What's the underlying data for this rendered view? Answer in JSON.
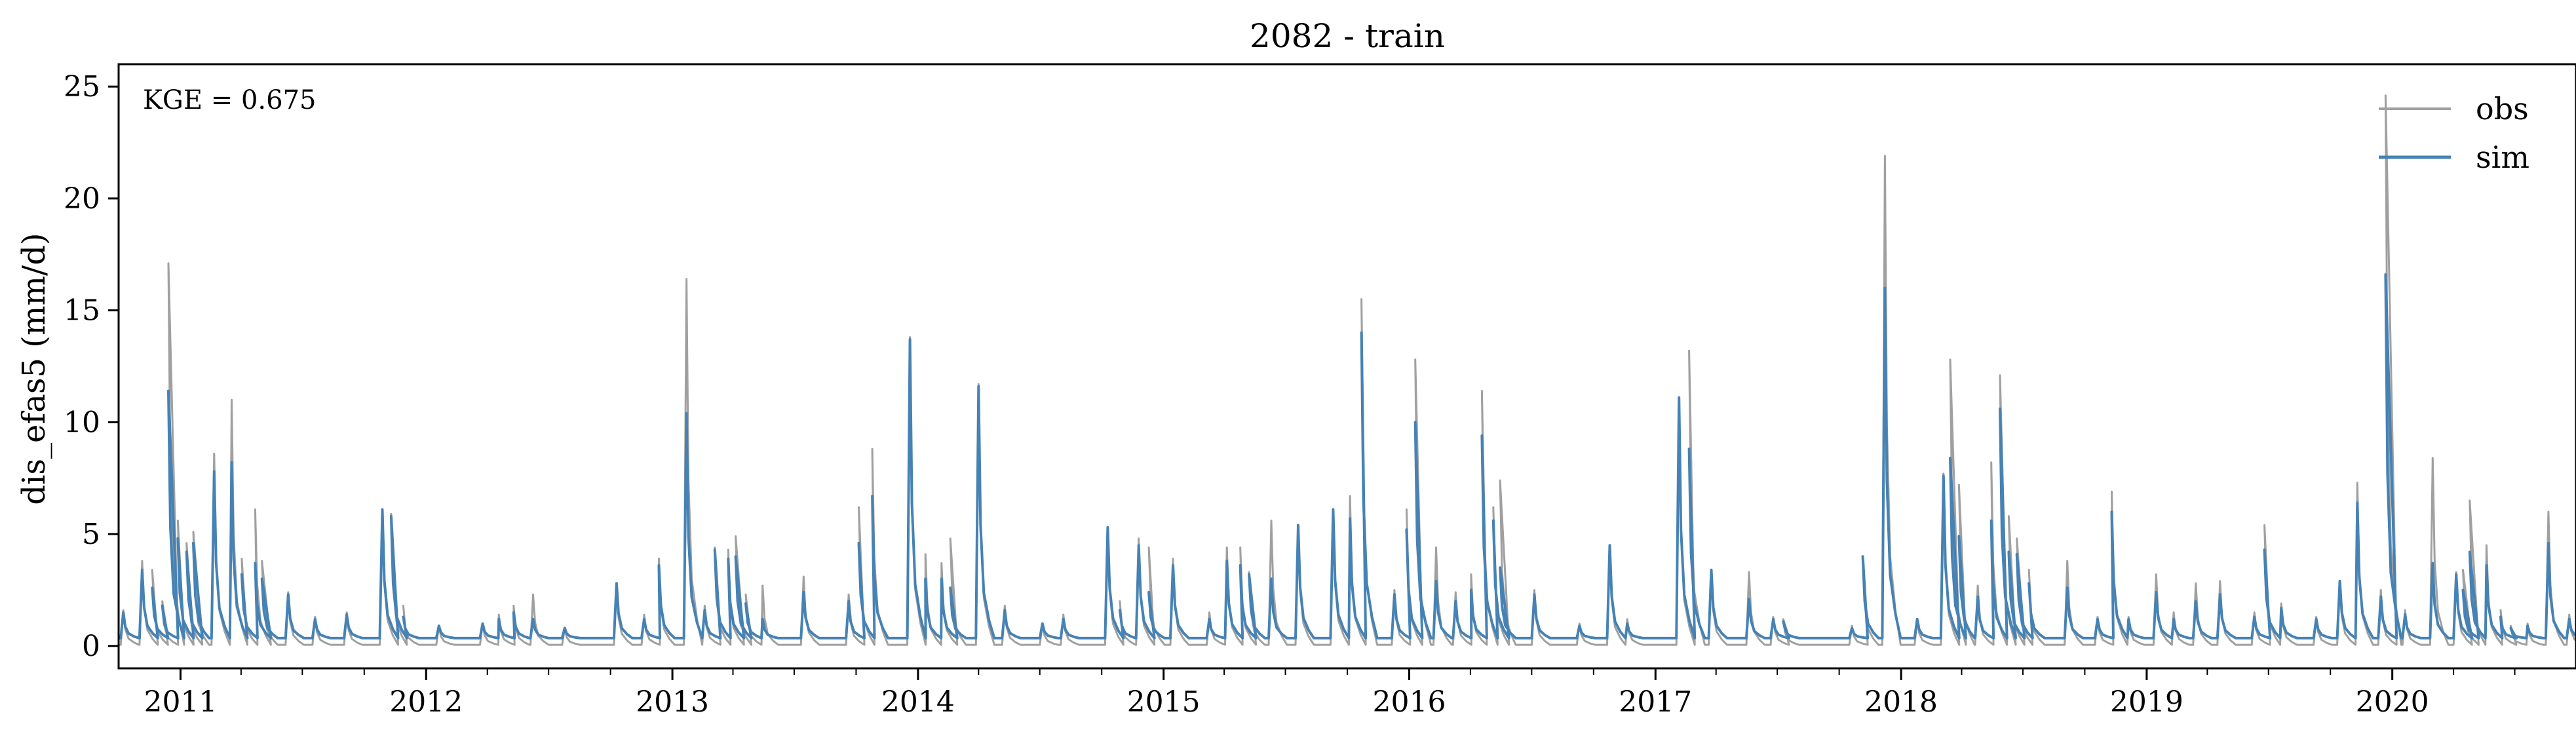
{
  "chart_data": {
    "type": "line",
    "title": "2082 - train",
    "xlabel": "",
    "ylabel": "dis_efas5 (mm/d)",
    "x_range": [
      "2010-10-01",
      "2020-09-30"
    ],
    "ylim": [
      -1.0,
      26.0
    ],
    "yticks": [
      0,
      5,
      10,
      15,
      20,
      25
    ],
    "ytick_labels": [
      "0",
      "5",
      "10",
      "15",
      "20",
      "25"
    ],
    "xticks": [
      "2011-01-01",
      "2012-01-01",
      "2013-01-01",
      "2014-01-01",
      "2015-01-01",
      "2016-01-01",
      "2017-01-01",
      "2018-01-01",
      "2019-01-01",
      "2020-01-01"
    ],
    "xtick_labels": [
      "2011",
      "2012",
      "2013",
      "2014",
      "2015",
      "2016",
      "2017",
      "2018",
      "2019",
      "2020"
    ],
    "grid": false,
    "legend": {
      "placement": "top-right",
      "entries": [
        "obs",
        "sim"
      ]
    },
    "annotation": "KGE = 0.675",
    "colors": {
      "obs": "#a0a0a0",
      "sim": "#4682b4"
    },
    "baseline": {
      "obs": 0.05,
      "sim": 0.35
    },
    "series": [
      {
        "name": "obs",
        "peaks": [
          [
            "2010-10-08",
            1.6
          ],
          [
            "2010-11-05",
            3.8
          ],
          [
            "2010-11-20",
            3.4
          ],
          [
            "2010-12-05",
            2.0
          ],
          [
            "2010-12-14",
            17.1
          ],
          [
            "2010-12-28",
            5.6
          ],
          [
            "2011-01-10",
            4.6
          ],
          [
            "2011-01-20",
            5.1
          ],
          [
            "2011-02-20",
            8.6
          ],
          [
            "2011-03-18",
            11.0
          ],
          [
            "2011-04-02",
            3.9
          ],
          [
            "2011-04-22",
            6.1
          ],
          [
            "2011-05-02",
            3.8
          ],
          [
            "2011-06-10",
            2.4
          ],
          [
            "2011-07-20",
            1.3
          ],
          [
            "2011-09-05",
            1.5
          ],
          [
            "2011-10-28",
            6.1
          ],
          [
            "2011-11-10",
            5.9
          ],
          [
            "2011-11-28",
            1.8
          ],
          [
            "2012-01-20",
            0.9
          ],
          [
            "2012-03-25",
            1.0
          ],
          [
            "2012-04-18",
            1.4
          ],
          [
            "2012-05-10",
            1.8
          ],
          [
            "2012-06-08",
            2.3
          ],
          [
            "2012-07-25",
            0.8
          ],
          [
            "2012-10-10",
            2.8
          ],
          [
            "2012-11-20",
            1.4
          ],
          [
            "2012-12-12",
            3.9
          ],
          [
            "2013-01-22",
            16.4
          ],
          [
            "2013-02-18",
            1.8
          ],
          [
            "2013-03-05",
            4.4
          ],
          [
            "2013-03-25",
            4.3
          ],
          [
            "2013-04-05",
            4.9
          ],
          [
            "2013-04-20",
            2.3
          ],
          [
            "2013-05-15",
            2.7
          ],
          [
            "2013-07-15",
            3.1
          ],
          [
            "2013-09-20",
            2.3
          ],
          [
            "2013-10-05",
            6.2
          ],
          [
            "2013-10-25",
            8.8
          ],
          [
            "2013-12-20",
            13.8
          ],
          [
            "2014-01-12",
            4.1
          ],
          [
            "2014-02-05",
            3.7
          ],
          [
            "2014-02-18",
            4.8
          ],
          [
            "2014-04-01",
            11.7
          ],
          [
            "2014-05-10",
            1.8
          ],
          [
            "2014-07-05",
            1.0
          ],
          [
            "2014-08-05",
            1.4
          ],
          [
            "2014-10-10",
            5.3
          ],
          [
            "2014-10-28",
            2.0
          ],
          [
            "2014-11-25",
            4.8
          ],
          [
            "2014-12-10",
            4.4
          ],
          [
            "2015-01-15",
            3.9
          ],
          [
            "2015-03-10",
            1.5
          ],
          [
            "2015-04-05",
            4.4
          ],
          [
            "2015-04-25",
            4.4
          ],
          [
            "2015-05-08",
            3.3
          ],
          [
            "2015-06-10",
            5.6
          ],
          [
            "2015-07-20",
            5.4
          ],
          [
            "2015-09-10",
            6.1
          ],
          [
            "2015-10-05",
            6.7
          ],
          [
            "2015-10-22",
            15.5
          ],
          [
            "2015-12-10",
            2.5
          ],
          [
            "2015-12-28",
            6.1
          ],
          [
            "2016-01-10",
            12.8
          ],
          [
            "2016-02-10",
            4.4
          ],
          [
            "2016-03-10",
            2.4
          ],
          [
            "2016-04-02",
            3.2
          ],
          [
            "2016-04-18",
            11.4
          ],
          [
            "2016-05-05",
            6.2
          ],
          [
            "2016-05-15",
            7.4
          ],
          [
            "2016-07-05",
            2.5
          ],
          [
            "2016-09-10",
            1.0
          ],
          [
            "2016-10-25",
            4.5
          ],
          [
            "2016-11-20",
            1.2
          ],
          [
            "2017-02-05",
            11.1
          ],
          [
            "2017-02-20",
            13.2
          ],
          [
            "2017-03-25",
            3.4
          ],
          [
            "2017-05-20",
            3.3
          ],
          [
            "2017-06-25",
            1.3
          ],
          [
            "2017-07-10",
            1.2
          ],
          [
            "2017-10-20",
            0.9
          ],
          [
            "2017-11-05",
            4.0
          ],
          [
            "2017-12-08",
            21.9
          ],
          [
            "2018-01-25",
            1.2
          ],
          [
            "2018-03-05",
            7.7
          ],
          [
            "2018-03-15",
            12.8
          ],
          [
            "2018-03-28",
            7.2
          ],
          [
            "2018-04-25",
            2.7
          ],
          [
            "2018-05-15",
            8.2
          ],
          [
            "2018-05-28",
            12.1
          ],
          [
            "2018-06-10",
            5.8
          ],
          [
            "2018-06-22",
            4.8
          ],
          [
            "2018-07-10",
            3.4
          ],
          [
            "2018-09-05",
            3.8
          ],
          [
            "2018-10-20",
            1.3
          ],
          [
            "2018-11-10",
            6.9
          ],
          [
            "2018-12-05",
            1.3
          ],
          [
            "2019-01-15",
            3.2
          ],
          [
            "2019-02-10",
            1.5
          ],
          [
            "2019-03-15",
            2.8
          ],
          [
            "2019-04-20",
            2.9
          ],
          [
            "2019-06-10",
            1.5
          ],
          [
            "2019-06-25",
            5.4
          ],
          [
            "2019-07-20",
            1.9
          ],
          [
            "2019-09-10",
            1.3
          ],
          [
            "2019-10-15",
            2.9
          ],
          [
            "2019-11-10",
            7.3
          ],
          [
            "2019-12-15",
            2.5
          ],
          [
            "2019-12-22",
            24.6
          ],
          [
            "2020-01-20",
            1.6
          ],
          [
            "2020-03-01",
            8.4
          ],
          [
            "2020-04-05",
            3.3
          ],
          [
            "2020-04-15",
            3.4
          ],
          [
            "2020-04-25",
            6.5
          ],
          [
            "2020-05-20",
            4.5
          ],
          [
            "2020-06-10",
            1.6
          ],
          [
            "2020-06-25",
            0.9
          ],
          [
            "2020-07-20",
            1.0
          ],
          [
            "2020-08-20",
            6.0
          ],
          [
            "2020-09-20",
            1.4
          ]
        ]
      },
      {
        "name": "sim",
        "peaks": [
          [
            "2010-10-08",
            1.5
          ],
          [
            "2010-11-05",
            3.4
          ],
          [
            "2010-11-20",
            2.6
          ],
          [
            "2010-12-05",
            1.8
          ],
          [
            "2010-12-14",
            11.4
          ],
          [
            "2010-12-28",
            4.8
          ],
          [
            "2011-01-10",
            4.2
          ],
          [
            "2011-01-20",
            4.6
          ],
          [
            "2011-02-20",
            7.8
          ],
          [
            "2011-03-18",
            8.2
          ],
          [
            "2011-04-02",
            3.2
          ],
          [
            "2011-04-22",
            3.7
          ],
          [
            "2011-05-02",
            3.0
          ],
          [
            "2011-06-10",
            2.3
          ],
          [
            "2011-07-20",
            1.2
          ],
          [
            "2011-09-05",
            1.4
          ],
          [
            "2011-10-28",
            6.1
          ],
          [
            "2011-11-10",
            5.8
          ],
          [
            "2011-11-28",
            1.3
          ],
          [
            "2012-01-20",
            0.9
          ],
          [
            "2012-03-25",
            1.0
          ],
          [
            "2012-04-18",
            1.2
          ],
          [
            "2012-05-10",
            1.5
          ],
          [
            "2012-06-08",
            1.2
          ],
          [
            "2012-07-25",
            0.8
          ],
          [
            "2012-10-10",
            2.8
          ],
          [
            "2012-11-20",
            1.2
          ],
          [
            "2012-12-12",
            3.6
          ],
          [
            "2013-01-22",
            10.4
          ],
          [
            "2013-02-18",
            1.6
          ],
          [
            "2013-03-05",
            4.3
          ],
          [
            "2013-03-25",
            3.9
          ],
          [
            "2013-04-05",
            4.0
          ],
          [
            "2013-04-20",
            1.9
          ],
          [
            "2013-05-15",
            1.2
          ],
          [
            "2013-07-15",
            2.4
          ],
          [
            "2013-09-20",
            2.0
          ],
          [
            "2013-10-05",
            4.6
          ],
          [
            "2013-10-25",
            6.7
          ],
          [
            "2013-12-20",
            13.7
          ],
          [
            "2014-01-12",
            3.0
          ],
          [
            "2014-02-05",
            3.0
          ],
          [
            "2014-02-18",
            2.6
          ],
          [
            "2014-04-01",
            11.6
          ],
          [
            "2014-05-10",
            1.6
          ],
          [
            "2014-07-05",
            1.0
          ],
          [
            "2014-08-05",
            1.2
          ],
          [
            "2014-10-10",
            5.3
          ],
          [
            "2014-10-28",
            1.6
          ],
          [
            "2014-11-25",
            4.5
          ],
          [
            "2014-12-10",
            2.4
          ],
          [
            "2015-01-15",
            3.6
          ],
          [
            "2015-03-10",
            1.2
          ],
          [
            "2015-04-05",
            3.8
          ],
          [
            "2015-04-25",
            3.6
          ],
          [
            "2015-05-08",
            3.2
          ],
          [
            "2015-06-10",
            3.0
          ],
          [
            "2015-07-20",
            5.4
          ],
          [
            "2015-09-10",
            6.1
          ],
          [
            "2015-10-05",
            5.7
          ],
          [
            "2015-10-22",
            14.0
          ],
          [
            "2015-12-10",
            2.3
          ],
          [
            "2015-12-28",
            5.2
          ],
          [
            "2016-01-10",
            10.0
          ],
          [
            "2016-02-10",
            2.9
          ],
          [
            "2016-03-10",
            2.0
          ],
          [
            "2016-04-02",
            2.5
          ],
          [
            "2016-04-18",
            9.4
          ],
          [
            "2016-05-05",
            5.6
          ],
          [
            "2016-05-15",
            3.5
          ],
          [
            "2016-07-05",
            2.3
          ],
          [
            "2016-09-10",
            0.9
          ],
          [
            "2016-10-25",
            4.5
          ],
          [
            "2016-11-20",
            1.0
          ],
          [
            "2017-02-05",
            11.1
          ],
          [
            "2017-02-20",
            8.8
          ],
          [
            "2017-03-25",
            3.4
          ],
          [
            "2017-05-20",
            2.1
          ],
          [
            "2017-06-25",
            1.2
          ],
          [
            "2017-07-10",
            1.1
          ],
          [
            "2017-10-20",
            0.8
          ],
          [
            "2017-11-05",
            4.0
          ],
          [
            "2017-12-08",
            16.0
          ],
          [
            "2018-01-25",
            1.2
          ],
          [
            "2018-03-05",
            7.6
          ],
          [
            "2018-03-15",
            8.4
          ],
          [
            "2018-03-28",
            4.9
          ],
          [
            "2018-04-25",
            2.2
          ],
          [
            "2018-05-15",
            5.6
          ],
          [
            "2018-05-28",
            10.6
          ],
          [
            "2018-06-10",
            4.2
          ],
          [
            "2018-06-22",
            4.1
          ],
          [
            "2018-07-10",
            2.8
          ],
          [
            "2018-09-05",
            2.6
          ],
          [
            "2018-10-20",
            1.2
          ],
          [
            "2018-11-10",
            6.0
          ],
          [
            "2018-12-05",
            1.2
          ],
          [
            "2019-01-15",
            2.4
          ],
          [
            "2019-02-10",
            1.2
          ],
          [
            "2019-03-15",
            2.0
          ],
          [
            "2019-04-20",
            2.3
          ],
          [
            "2019-06-10",
            1.3
          ],
          [
            "2019-06-25",
            4.3
          ],
          [
            "2019-07-20",
            1.7
          ],
          [
            "2019-09-10",
            1.2
          ],
          [
            "2019-10-15",
            2.9
          ],
          [
            "2019-11-10",
            6.4
          ],
          [
            "2019-12-15",
            2.2
          ],
          [
            "2019-12-22",
            16.6
          ],
          [
            "2020-01-20",
            1.4
          ],
          [
            "2020-03-01",
            3.7
          ],
          [
            "2020-04-05",
            3.2
          ],
          [
            "2020-04-15",
            2.5
          ],
          [
            "2020-04-25",
            4.2
          ],
          [
            "2020-05-20",
            3.6
          ],
          [
            "2020-06-10",
            1.3
          ],
          [
            "2020-06-25",
            0.8
          ],
          [
            "2020-07-20",
            0.9
          ],
          [
            "2020-08-20",
            4.6
          ],
          [
            "2020-09-20",
            1.2
          ]
        ]
      }
    ]
  }
}
